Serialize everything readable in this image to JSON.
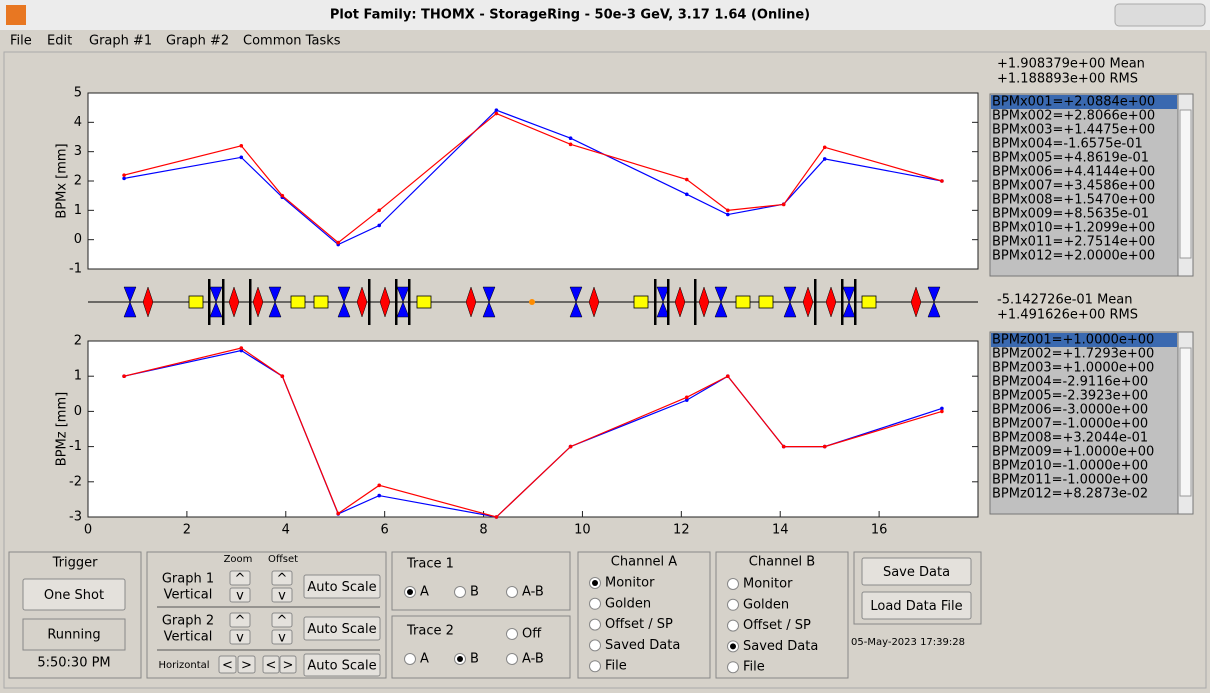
{
  "window": {
    "title": "Plot Family:  THOMX  -  StorageRing  -  50e-3 GeV, 3.17 1.64  (Online)"
  },
  "menu": [
    "File",
    "Edit",
    "Graph #1",
    "Graph #2",
    "Common Tasks"
  ],
  "plots": [
    {
      "type": "line",
      "ylabel": "BPMx [mm]",
      "xlim": [
        0,
        18
      ],
      "ylim": [
        -1,
        5
      ],
      "yticks": [
        -1,
        0,
        1,
        2,
        3,
        4,
        5
      ],
      "x": [
        0.73,
        3.1,
        3.93,
        5.06,
        5.89,
        8.26,
        9.76,
        12.11,
        12.94,
        14.07,
        14.9,
        17.27
      ],
      "series": [
        {
          "color": "#0000ff",
          "values": [
            2.0884,
            2.8066,
            1.4475,
            -0.16575,
            0.48619,
            4.4144,
            3.4586,
            1.547,
            0.85635,
            1.2099,
            2.7514,
            2.0
          ]
        },
        {
          "color": "#ff0000",
          "values": [
            2.2,
            3.2,
            1.5,
            -0.1,
            1.0,
            4.3,
            3.25,
            2.05,
            1.0,
            1.2,
            3.15,
            2.0
          ]
        }
      ]
    },
    {
      "type": "line",
      "ylabel": "BPMz [mm]",
      "xlim": [
        0,
        18
      ],
      "ylim": [
        -3,
        2
      ],
      "yticks": [
        -3,
        -2,
        -1,
        0,
        1,
        2
      ],
      "xticks": [
        0,
        2,
        4,
        6,
        8,
        10,
        12,
        14,
        16
      ],
      "x": [
        0.73,
        3.1,
        3.93,
        5.06,
        5.89,
        8.26,
        9.76,
        12.11,
        12.94,
        14.07,
        14.9,
        17.27
      ],
      "series": [
        {
          "color": "#0000ff",
          "values": [
            1.0,
            1.7293,
            1.0,
            -2.9116,
            -2.3923,
            -3.0,
            -1.0,
            0.32044,
            1.0,
            -1.0,
            -1.0,
            0.082873
          ]
        },
        {
          "color": "#ff0000",
          "values": [
            1.0,
            1.8,
            1.0,
            -2.9,
            -2.1,
            -3.0,
            -1.0,
            0.4,
            1.0,
            -1.0,
            -1.0,
            0.0
          ]
        }
      ]
    }
  ],
  "lists": [
    {
      "mean": "+1.908379e+00 Mean",
      "rms": "+1.188893e+00 RMS",
      "selected": 0,
      "items": [
        "BPMx001=+2.0884e+00",
        "BPMx002=+2.8066e+00",
        "BPMx003=+1.4475e+00",
        "BPMx004=-1.6575e-01",
        "BPMx005=+4.8619e-01",
        "BPMx006=+4.4144e+00",
        "BPMx007=+3.4586e+00",
        "BPMx008=+1.5470e+00",
        "BPMx009=+8.5635e-01",
        "BPMx010=+1.2099e+00",
        "BPMx011=+2.7514e+00",
        "BPMx012=+2.0000e+00"
      ]
    },
    {
      "mean": "-5.142726e-01 Mean",
      "rms": "+1.491626e+00 RMS",
      "selected": 0,
      "items": [
        "BPMz001=+1.0000e+00",
        "BPMz002=+1.7293e+00",
        "BPMz003=+1.0000e+00",
        "BPMz004=-2.9116e+00",
        "BPMz005=-2.3923e+00",
        "BPMz006=-3.0000e+00",
        "BPMz007=-1.0000e+00",
        "BPMz008=+3.2044e-01",
        "BPMz009=+1.0000e+00",
        "BPMz010=-1.0000e+00",
        "BPMz011=-1.0000e+00",
        "BPMz012=+8.2873e-02"
      ]
    }
  ],
  "trigger": {
    "title": "Trigger",
    "button": "One Shot",
    "status": "Running",
    "time": "5:50:30 PM"
  },
  "scale": {
    "zoom": "Zoom",
    "offset": "Offset",
    "graph1": [
      "Graph 1",
      "Vertical"
    ],
    "graph2": [
      "Graph 2",
      "Vertical"
    ],
    "horizontal": "Horizontal",
    "up": "^",
    "down": "v",
    "left": "<",
    "right": ">",
    "auto": "Auto Scale"
  },
  "trace1": {
    "title": "Trace 1",
    "options": [
      "A",
      "B",
      "A-B"
    ],
    "selected": 0
  },
  "trace2": {
    "title": "Trace 2",
    "off": "Off",
    "options": [
      "A",
      "B",
      "A-B"
    ],
    "selected": 1
  },
  "channel_a": {
    "title": "Channel A",
    "options": [
      "Monitor",
      "Golden",
      "Offset / SP",
      "Saved Data",
      "File"
    ],
    "selected": 0
  },
  "channel_b": {
    "title": "Channel B",
    "options": [
      "Monitor",
      "Golden",
      "Offset / SP",
      "Saved Data",
      "File"
    ],
    "selected": 3
  },
  "data_buttons": {
    "save": "Save Data",
    "load": "Load Data File",
    "date": "05-May-2023 17:39:28"
  }
}
